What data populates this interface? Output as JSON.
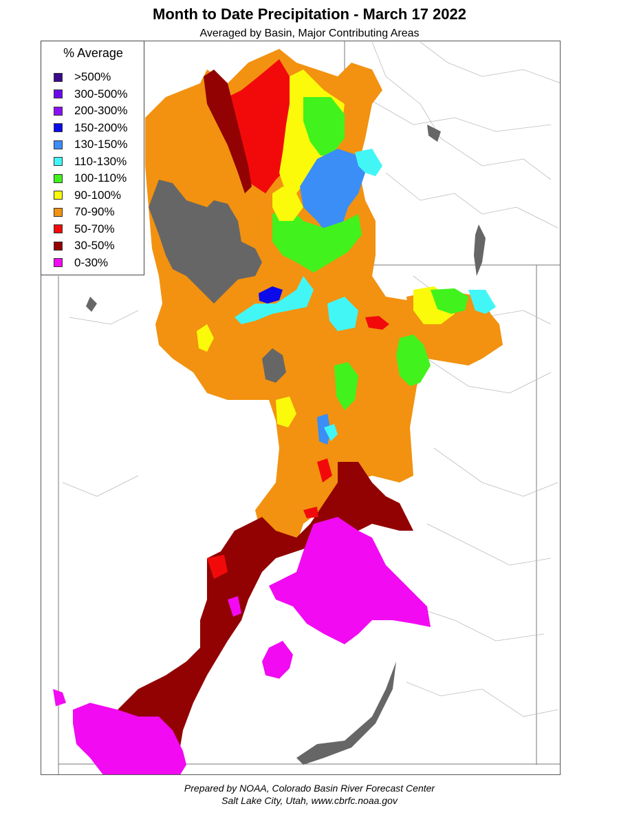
{
  "title": "Month to Date Precipitation - March 17 2022",
  "subtitle": "Averaged by Basin, Major Contributing Areas",
  "legend": {
    "title": "% Average",
    "items": [
      {
        "label": ">500%",
        "color": "#3b0a8c"
      },
      {
        "label": "300-500%",
        "color": "#6a0aec"
      },
      {
        "label": "200-300%",
        "color": "#8a10f2"
      },
      {
        "label": "150-200%",
        "color": "#0a0aea"
      },
      {
        "label": "130-150%",
        "color": "#3a8ef6"
      },
      {
        "label": "110-130%",
        "color": "#42f6f6"
      },
      {
        "label": "100-110%",
        "color": "#42f21c"
      },
      {
        "label": "90-100%",
        "color": "#fafa0a"
      },
      {
        "label": "70-90%",
        "color": "#f29210"
      },
      {
        "label": "50-70%",
        "color": "#f20a0a"
      },
      {
        "label": "30-50%",
        "color": "#920202"
      },
      {
        "label": "0-30%",
        "color": "#f20af2"
      }
    ]
  },
  "colors": {
    "no_data_gray": "#666666",
    "boundary_line": "#777777",
    "river_line": "#bbbbbb"
  },
  "footer": {
    "line1": "Prepared by NOAA, Colorado Basin River Forecast Center",
    "line2": "Salt Lake City, Utah, www.cbrfc.noaa.gov"
  }
}
